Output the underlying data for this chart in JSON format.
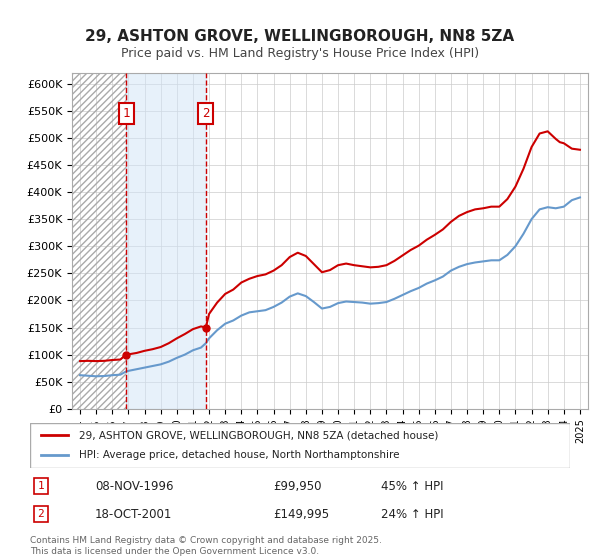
{
  "title": "29, ASHTON GROVE, WELLINGBOROUGH, NN8 5ZA",
  "subtitle": "Price paid vs. HM Land Registry's House Price Index (HPI)",
  "xlabel": "",
  "ylabel": "",
  "background_color": "#ffffff",
  "plot_bg_color": "#ffffff",
  "grid_color": "#cccccc",
  "hpi_line_color": "#6699cc",
  "price_line_color": "#cc0000",
  "purchase1_date_num": 1996.86,
  "purchase2_date_num": 2001.8,
  "purchase1_price": 99950,
  "purchase2_price": 149995,
  "purchase1_label": "08-NOV-1996",
  "purchase2_label": "18-OCT-2001",
  "purchase1_pct": "45% ↑ HPI",
  "purchase2_pct": "24% ↑ HPI",
  "legend_line1": "29, ASHTON GROVE, WELLINGBOROUGH, NN8 5ZA (detached house)",
  "legend_line2": "HPI: Average price, detached house, North Northamptonshire",
  "footer": "Contains HM Land Registry data © Crown copyright and database right 2025.\nThis data is licensed under the Open Government Licence v3.0.",
  "xmin": 1993.5,
  "xmax": 2025.5,
  "ymin": 0,
  "ymax": 620000,
  "yticks": [
    0,
    50000,
    100000,
    150000,
    200000,
    250000,
    300000,
    350000,
    400000,
    450000,
    500000,
    550000,
    600000
  ],
  "ytick_labels": [
    "£0",
    "£50K",
    "£100K",
    "£150K",
    "£200K",
    "£250K",
    "£300K",
    "£350K",
    "£400K",
    "£450K",
    "£500K",
    "£550K",
    "£600K"
  ],
  "hpi_data": [
    [
      1994.0,
      62000
    ],
    [
      1994.5,
      61000
    ],
    [
      1995.0,
      60000
    ],
    [
      1995.5,
      60500
    ],
    [
      1996.0,
      62000
    ],
    [
      1996.5,
      63000
    ],
    [
      1996.86,
      69000
    ],
    [
      1997.0,
      70000
    ],
    [
      1997.5,
      73000
    ],
    [
      1998.0,
      76000
    ],
    [
      1998.5,
      79000
    ],
    [
      1999.0,
      82000
    ],
    [
      1999.5,
      87000
    ],
    [
      2000.0,
      94000
    ],
    [
      2000.5,
      100000
    ],
    [
      2001.0,
      108000
    ],
    [
      2001.5,
      113000
    ],
    [
      2001.8,
      121000
    ],
    [
      2002.0,
      130000
    ],
    [
      2002.5,
      145000
    ],
    [
      2003.0,
      157000
    ],
    [
      2003.5,
      163000
    ],
    [
      2004.0,
      172000
    ],
    [
      2004.5,
      178000
    ],
    [
      2005.0,
      180000
    ],
    [
      2005.5,
      182000
    ],
    [
      2006.0,
      188000
    ],
    [
      2006.5,
      196000
    ],
    [
      2007.0,
      207000
    ],
    [
      2007.5,
      213000
    ],
    [
      2008.0,
      208000
    ],
    [
      2008.5,
      197000
    ],
    [
      2009.0,
      185000
    ],
    [
      2009.5,
      188000
    ],
    [
      2010.0,
      195000
    ],
    [
      2010.5,
      198000
    ],
    [
      2011.0,
      197000
    ],
    [
      2011.5,
      196000
    ],
    [
      2012.0,
      194000
    ],
    [
      2012.5,
      195000
    ],
    [
      2013.0,
      197000
    ],
    [
      2013.5,
      203000
    ],
    [
      2014.0,
      210000
    ],
    [
      2014.5,
      217000
    ],
    [
      2015.0,
      223000
    ],
    [
      2015.5,
      231000
    ],
    [
      2016.0,
      237000
    ],
    [
      2016.5,
      244000
    ],
    [
      2017.0,
      255000
    ],
    [
      2017.5,
      262000
    ],
    [
      2018.0,
      267000
    ],
    [
      2018.5,
      270000
    ],
    [
      2019.0,
      272000
    ],
    [
      2019.5,
      274000
    ],
    [
      2020.0,
      274000
    ],
    [
      2020.5,
      284000
    ],
    [
      2021.0,
      300000
    ],
    [
      2021.5,
      323000
    ],
    [
      2022.0,
      350000
    ],
    [
      2022.5,
      368000
    ],
    [
      2023.0,
      372000
    ],
    [
      2023.5,
      370000
    ],
    [
      2024.0,
      373000
    ],
    [
      2024.5,
      385000
    ],
    [
      2025.0,
      390000
    ]
  ],
  "price_data": [
    [
      1994.0,
      88000
    ],
    [
      1994.5,
      88500
    ],
    [
      1995.0,
      88000
    ],
    [
      1995.5,
      88500
    ],
    [
      1996.0,
      90000
    ],
    [
      1996.5,
      91000
    ],
    [
      1996.86,
      99950
    ],
    [
      1997.0,
      100500
    ],
    [
      1997.5,
      103000
    ],
    [
      1998.0,
      107000
    ],
    [
      1998.5,
      110000
    ],
    [
      1999.0,
      114000
    ],
    [
      1999.5,
      121000
    ],
    [
      2000.0,
      130000
    ],
    [
      2000.5,
      138000
    ],
    [
      2001.0,
      147000
    ],
    [
      2001.5,
      152000
    ],
    [
      2001.8,
      149995
    ],
    [
      2002.0,
      175000
    ],
    [
      2002.5,
      196000
    ],
    [
      2003.0,
      212000
    ],
    [
      2003.5,
      220000
    ],
    [
      2004.0,
      233000
    ],
    [
      2004.5,
      240000
    ],
    [
      2005.0,
      245000
    ],
    [
      2005.5,
      248000
    ],
    [
      2006.0,
      255000
    ],
    [
      2006.5,
      265000
    ],
    [
      2007.0,
      280000
    ],
    [
      2007.5,
      288000
    ],
    [
      2008.0,
      282000
    ],
    [
      2008.5,
      267000
    ],
    [
      2009.0,
      252000
    ],
    [
      2009.5,
      256000
    ],
    [
      2010.0,
      265000
    ],
    [
      2010.5,
      268000
    ],
    [
      2011.0,
      265000
    ],
    [
      2011.5,
      263000
    ],
    [
      2012.0,
      261000
    ],
    [
      2012.5,
      262000
    ],
    [
      2013.0,
      265000
    ],
    [
      2013.5,
      273000
    ],
    [
      2014.0,
      283000
    ],
    [
      2014.5,
      293000
    ],
    [
      2015.0,
      301000
    ],
    [
      2015.5,
      312000
    ],
    [
      2016.0,
      321000
    ],
    [
      2016.5,
      331000
    ],
    [
      2017.0,
      345000
    ],
    [
      2017.5,
      356000
    ],
    [
      2018.0,
      363000
    ],
    [
      2018.5,
      368000
    ],
    [
      2019.0,
      370000
    ],
    [
      2019.5,
      373000
    ],
    [
      2020.0,
      373000
    ],
    [
      2020.5,
      387000
    ],
    [
      2021.0,
      410000
    ],
    [
      2021.5,
      443000
    ],
    [
      2022.0,
      483000
    ],
    [
      2022.5,
      508000
    ],
    [
      2023.0,
      512000
    ],
    [
      2023.5,
      498000
    ],
    [
      2023.75,
      492000
    ],
    [
      2024.0,
      490000
    ],
    [
      2024.5,
      480000
    ],
    [
      2025.0,
      478000
    ]
  ]
}
